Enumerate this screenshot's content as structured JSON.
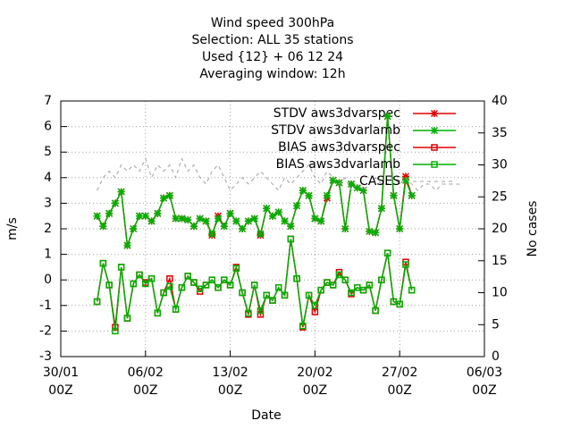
{
  "chart_data": {
    "type": "line",
    "title": [
      "Wind speed 300hPa",
      "Selection: ALL      35 stations",
      "Used {12} + 06 12 24",
      "Averaging window: 12h"
    ],
    "xlabel": "Date",
    "ylabel": "m/s",
    "y2label": "No cases",
    "xlim": [
      0,
      35
    ],
    "xticks": [
      {
        "value": 0,
        "label": "30/01 00Z"
      },
      {
        "value": 7,
        "label": "06/02 00Z"
      },
      {
        "value": 14,
        "label": "13/02 00Z"
      },
      {
        "value": 21,
        "label": "20/02 00Z"
      },
      {
        "value": 28,
        "label": "27/02 00Z"
      },
      {
        "value": 35,
        "label": "06/03 00Z"
      }
    ],
    "ylim": [
      -3,
      7
    ],
    "yticks": [
      -3,
      -2,
      -1,
      0,
      1,
      2,
      3,
      4,
      5,
      6,
      7
    ],
    "y2lim": [
      0,
      40
    ],
    "y2ticks": [
      0,
      5,
      10,
      15,
      20,
      25,
      30,
      35,
      40
    ],
    "grid": true,
    "legend": "top-right",
    "series": [
      {
        "name": "STDV aws3dvarspec",
        "color": "#e00000",
        "marker": "star",
        "x": [
          3,
          3.5,
          4,
          4.5,
          5,
          5.5,
          6,
          6.5,
          7,
          7.5,
          8,
          8.5,
          9,
          9.5,
          10,
          10.5,
          11,
          11.5,
          12,
          12.5,
          13,
          13.5,
          14,
          14.5,
          15,
          15.5,
          16,
          16.5,
          17,
          17.5,
          18,
          18.5,
          19,
          19.5,
          20,
          20.5,
          21,
          21.5,
          22,
          22.5,
          23,
          23.5,
          24,
          24.5,
          25,
          25.5,
          26,
          26.5,
          27,
          27.5,
          28,
          28.5,
          29
        ],
        "values": [
          2.5,
          2.1,
          2.6,
          3.0,
          3.45,
          1.35,
          2.0,
          2.5,
          2.5,
          2.3,
          2.6,
          3.2,
          3.3,
          2.4,
          2.4,
          2.35,
          2.1,
          2.4,
          2.3,
          1.75,
          2.5,
          2.1,
          2.6,
          2.3,
          2.0,
          2.3,
          2.4,
          1.75,
          2.8,
          2.5,
          2.65,
          2.3,
          2.1,
          2.9,
          3.5,
          3.3,
          2.4,
          2.3,
          3.2,
          3.9,
          3.8,
          2.0,
          3.75,
          3.6,
          3.5,
          1.9,
          1.85,
          2.8,
          6.4,
          3.3,
          2.0,
          4.05,
          3.3
        ]
      },
      {
        "name": "STDV aws3dvarlamb",
        "color": "#00b000",
        "marker": "star",
        "x": [
          3,
          3.5,
          4,
          4.5,
          5,
          5.5,
          6,
          6.5,
          7,
          7.5,
          8,
          8.5,
          9,
          9.5,
          10,
          10.5,
          11,
          11.5,
          12,
          12.5,
          13,
          13.5,
          14,
          14.5,
          15,
          15.5,
          16,
          16.5,
          17,
          17.5,
          18,
          18.5,
          19,
          19.5,
          20,
          20.5,
          21,
          21.5,
          22,
          22.5,
          23,
          23.5,
          24,
          24.5,
          25,
          25.5,
          26,
          26.5,
          27,
          27.5,
          28,
          28.5,
          29
        ],
        "values": [
          2.5,
          2.1,
          2.6,
          3.0,
          3.45,
          1.35,
          2.0,
          2.5,
          2.5,
          2.3,
          2.6,
          3.2,
          3.3,
          2.4,
          2.4,
          2.35,
          2.1,
          2.4,
          2.3,
          1.8,
          2.4,
          2.1,
          2.6,
          2.3,
          2.0,
          2.3,
          2.4,
          1.8,
          2.8,
          2.5,
          2.65,
          2.3,
          2.1,
          2.9,
          3.5,
          3.3,
          2.4,
          2.3,
          3.3,
          3.9,
          3.8,
          2.0,
          3.75,
          3.6,
          3.5,
          1.9,
          1.85,
          2.8,
          6.4,
          3.3,
          2.0,
          3.9,
          3.3
        ]
      },
      {
        "name": "BIAS aws3dvarspec",
        "color": "#e00000",
        "marker": "square",
        "x": [
          3,
          3.5,
          4,
          4.5,
          5,
          5.5,
          6,
          6.5,
          7,
          7.5,
          8,
          8.5,
          9,
          9.5,
          10,
          10.5,
          11,
          11.5,
          12,
          12.5,
          13,
          13.5,
          14,
          14.5,
          15,
          15.5,
          16,
          16.5,
          17,
          17.5,
          18,
          18.5,
          19,
          19.5,
          20,
          20.5,
          21,
          21.5,
          22,
          22.5,
          23,
          23.5,
          24,
          24.5,
          25,
          25.5,
          26,
          26.5,
          27,
          27.5,
          28,
          28.5,
          29
        ],
        "values": [
          -0.85,
          0.65,
          -0.2,
          -1.85,
          0.5,
          -1.5,
          -0.15,
          0.2,
          -0.1,
          0.05,
          -1.3,
          -0.5,
          0.05,
          -1.15,
          -0.3,
          0.15,
          -0.1,
          -0.45,
          -0.2,
          0.0,
          -0.3,
          0.0,
          -0.2,
          0.5,
          -0.5,
          -1.35,
          -0.2,
          -1.35,
          -0.6,
          -0.8,
          -0.3,
          -0.6,
          1.6,
          0.05,
          -1.85,
          -0.6,
          -1.25,
          -0.4,
          -0.1,
          -0.2,
          0.3,
          0.0,
          -0.55,
          -0.3,
          -0.4,
          -0.2,
          -1.2,
          0.0,
          1.05,
          -0.85,
          -0.95,
          0.7,
          -0.4
        ]
      },
      {
        "name": "BIAS aws3dvarlamb",
        "color": "#00b000",
        "marker": "square",
        "x": [
          3,
          3.5,
          4,
          4.5,
          5,
          5.5,
          6,
          6.5,
          7,
          7.5,
          8,
          8.5,
          9,
          9.5,
          10,
          10.5,
          11,
          11.5,
          12,
          12.5,
          13,
          13.5,
          14,
          14.5,
          15,
          15.5,
          16,
          16.5,
          17,
          17.5,
          18,
          18.5,
          19,
          19.5,
          20,
          20.5,
          21,
          21.5,
          22,
          22.5,
          23,
          23.5,
          24,
          24.5,
          25,
          25.5,
          26,
          26.5,
          27,
          27.5,
          28,
          28.5,
          29
        ],
        "values": [
          -0.85,
          0.65,
          -0.2,
          -2.0,
          0.5,
          -1.5,
          -0.15,
          0.2,
          -0.15,
          0.05,
          -1.3,
          -0.5,
          -0.25,
          -1.15,
          -0.3,
          0.15,
          -0.1,
          -0.35,
          -0.2,
          0.0,
          -0.3,
          0.0,
          -0.2,
          0.45,
          -0.5,
          -1.3,
          -0.2,
          -1.2,
          -0.6,
          -0.8,
          -0.3,
          -0.6,
          1.6,
          0.05,
          -1.8,
          -0.6,
          -1.0,
          -0.4,
          -0.1,
          -0.2,
          0.2,
          0.0,
          -0.5,
          -0.3,
          -0.4,
          -0.2,
          -1.2,
          0.0,
          1.05,
          -0.85,
          -0.95,
          0.6,
          -0.4
        ]
      },
      {
        "name": "CASES",
        "color": "#a0a0a0",
        "marker": "none",
        "dash": true,
        "axis": "y2",
        "x": [
          3,
          3.5,
          4,
          4.5,
          5,
          5.5,
          6,
          6.5,
          7,
          7.5,
          8,
          8.5,
          9,
          9.5,
          10,
          10.5,
          11,
          11.5,
          12,
          12.5,
          13,
          13.5,
          14,
          14.5,
          15,
          15.5,
          16,
          16.5,
          17,
          17.5,
          18,
          18.5,
          19,
          19.5,
          20,
          20.5,
          21,
          21.5,
          22,
          22.5,
          23,
          23.5,
          24,
          24.5,
          25,
          25.5,
          26,
          26.5,
          27,
          27.5,
          28,
          28.5,
          29,
          29.5,
          30,
          30.5,
          31,
          31.5,
          32,
          32.5,
          33
        ],
        "values": [
          26,
          28,
          29,
          28,
          30,
          29,
          30,
          29,
          31,
          28,
          30,
          29,
          30,
          28,
          31,
          29,
          30,
          28,
          27,
          29,
          30,
          28,
          26,
          27,
          28,
          27,
          28,
          29,
          28,
          27,
          26,
          28,
          27,
          28,
          29,
          30,
          28,
          27,
          29,
          28,
          27,
          28,
          26,
          27,
          26,
          27,
          28,
          27,
          27,
          28,
          27,
          28,
          27,
          26,
          27,
          27,
          26,
          27,
          27,
          27,
          27
        ]
      }
    ]
  }
}
